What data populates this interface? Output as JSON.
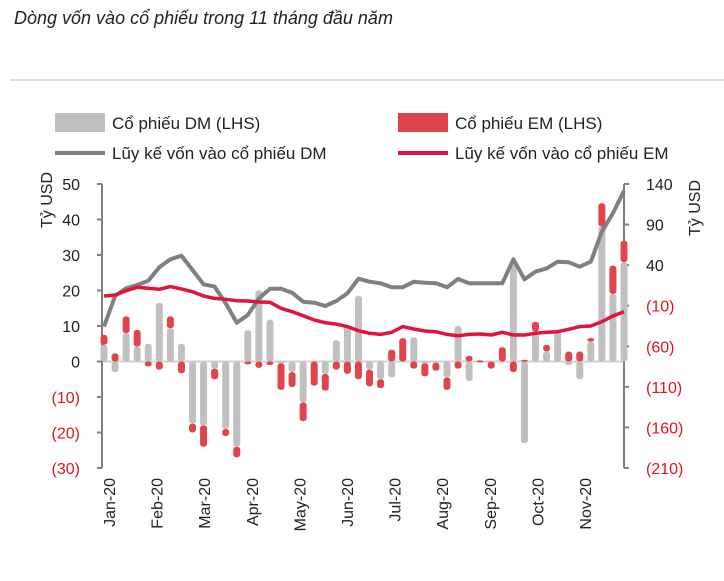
{
  "chart_data": {
    "type": "bar+line",
    "title": "Dòng vốn vào cổ phiếu trong 11 tháng đầu năm",
    "ylabel_left": "Tỷ USD",
    "ylabel_right": "Tỷ USD",
    "ylim_left": [
      -30,
      50
    ],
    "ylim_right": [
      -210,
      140
    ],
    "yticks_left": [
      50,
      40,
      30,
      20,
      10,
      0,
      -10,
      -20,
      -30
    ],
    "ytick_labels_left": [
      "50",
      "40",
      "30",
      "20",
      "10",
      "0",
      "(10)",
      "(20)",
      "(30)"
    ],
    "yticks_right": [
      140,
      90,
      40,
      -10,
      -60,
      -110,
      -160,
      -210
    ],
    "ytick_labels_right": [
      "140",
      "90",
      "40",
      "(10)",
      "(60)",
      "(110)",
      "(160)",
      "(210)"
    ],
    "x_tick_labels": [
      "Jan-20",
      "Feb-20",
      "Mar-20",
      "Apr-20",
      "May-20",
      "Jun-20",
      "Jul-20",
      "Aug-20",
      "Sep-20",
      "Oct-20",
      "Nov-20"
    ],
    "legend_position": "top",
    "negative_color": "#e0141e",
    "series": [
      {
        "name": "Cổ phiếu DM (LHS)",
        "type": "bar",
        "axis": "left",
        "color": "#c0c0c0",
        "values": [
          4.7,
          -3,
          8,
          4.2,
          5,
          16.5,
          9.4,
          5,
          -17.5,
          -18,
          -2,
          -19,
          -24,
          8.8,
          20,
          11.8,
          -0.5,
          -3,
          -11.5,
          0,
          -3.5,
          6,
          10,
          18.5,
          -2.3,
          -5,
          -4.5,
          0,
          6.8,
          -0.5,
          -0.3,
          -4.5,
          10,
          -5.5,
          0,
          0,
          0,
          28.5,
          -23,
          8.4,
          2.8,
          8.4,
          -1,
          -5,
          5.6,
          38,
          19,
          28
        ]
      },
      {
        "name": "Cổ phiếu EM (LHS)",
        "type": "bar",
        "axis": "left",
        "color": "#e0454e",
        "values": [
          2.8,
          2.3,
          4.7,
          4.7,
          -1.4,
          -2.3,
          3.3,
          -3.3,
          -2.5,
          -6,
          -3,
          -2,
          -3,
          -0.8,
          -1.8,
          -1,
          -7.5,
          -4.2,
          -5.3,
          -6.8,
          -4.7,
          -2.3,
          -3.5,
          -5,
          -4.7,
          -2.5,
          3.3,
          6.6,
          -2,
          -3.7,
          -2.3,
          -3.5,
          -2,
          1.6,
          0.3,
          -2,
          4,
          -3,
          0.5,
          2.8,
          1.9,
          0.5,
          2.8,
          2.8,
          1,
          6.6,
          8,
          6
        ]
      },
      {
        "name": "Lũy kế vốn vào cổ phiếu DM",
        "type": "line",
        "axis": "right",
        "color": "#808080",
        "values": [
          -35.8,
          2,
          11.5,
          15.5,
          20.8,
          37.3,
          47.2,
          51.7,
          34,
          16.4,
          13.5,
          -7,
          -31,
          -21.5,
          -1,
          11,
          11,
          6,
          -5,
          -6.3,
          -10.4,
          -4.2,
          5.3,
          23.3,
          19.6,
          17.6,
          12.7,
          12.7,
          19.6,
          18.4,
          17.6,
          12.7,
          22.9,
          17.6,
          17.6,
          17.6,
          17.6,
          47.2,
          22.5,
          32,
          36,
          44.3,
          43.5,
          38.1,
          44.3,
          81.3,
          103.9,
          131.8
        ]
      },
      {
        "name": "Lũy kế vốn vào cổ phiếu EM",
        "type": "line",
        "axis": "right",
        "color": "#e0143c",
        "values": [
          2,
          3.2,
          8.5,
          12.7,
          11.5,
          10.2,
          13.5,
          10.6,
          7.3,
          2,
          -1,
          -2.1,
          -3.8,
          -4.2,
          -5.4,
          -5.8,
          -13.2,
          -17.4,
          -22.3,
          -27.6,
          -30.9,
          -32.6,
          -35.8,
          -40.8,
          -44,
          -45.3,
          -42.8,
          -35.8,
          -38.7,
          -41.2,
          -42,
          -45.3,
          -47,
          -45.3,
          -44.9,
          -46.1,
          -42.8,
          -46.1,
          -46.1,
          -44,
          -42.8,
          -42,
          -39.1,
          -35.8,
          -35,
          -29.7,
          -22.7,
          -17.4
        ]
      }
    ]
  }
}
